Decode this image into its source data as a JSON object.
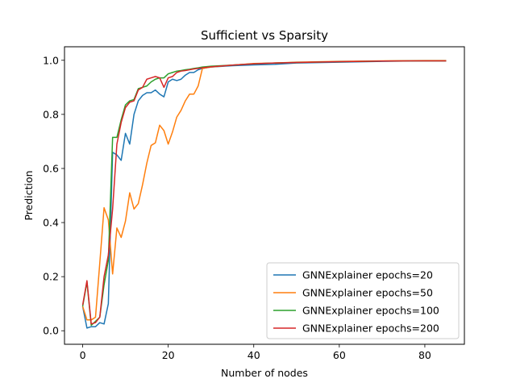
{
  "chart_data": {
    "type": "line",
    "title": "Sufficient vs Sparsity",
    "xlabel": "Number of nodes",
    "ylabel": "Prediction",
    "xlim": [
      -4.25,
      89.25
    ],
    "ylim": [
      -0.05,
      1.05
    ],
    "xticks": [
      0,
      20,
      40,
      60,
      80
    ],
    "yticks": [
      0.0,
      0.2,
      0.4,
      0.6,
      0.8,
      1.0
    ],
    "ytick_labels": [
      "0.0",
      "0.2",
      "0.4",
      "0.6",
      "0.8",
      "1.0"
    ],
    "xtick_labels": [
      "0",
      "20",
      "40",
      "60",
      "80"
    ],
    "grid": false,
    "legend_position": "lower right",
    "series": [
      {
        "name": "GNNExplainer epochs=20",
        "color": "#1f77b4",
        "x": [
          0,
          1,
          2,
          3,
          4,
          5,
          6,
          7,
          8,
          9,
          10,
          11,
          12,
          13,
          14,
          15,
          16,
          17,
          18,
          19,
          20,
          21,
          22,
          23,
          24,
          25,
          26,
          27,
          28,
          30,
          35,
          40,
          45,
          50,
          60,
          70,
          80,
          85
        ],
        "y": [
          0.09,
          0.01,
          0.015,
          0.015,
          0.03,
          0.025,
          0.1,
          0.66,
          0.65,
          0.63,
          0.73,
          0.69,
          0.8,
          0.85,
          0.87,
          0.88,
          0.88,
          0.89,
          0.875,
          0.865,
          0.92,
          0.93,
          0.925,
          0.93,
          0.945,
          0.955,
          0.955,
          0.965,
          0.97,
          0.975,
          0.98,
          0.983,
          0.985,
          0.99,
          0.993,
          0.996,
          0.998,
          0.998
        ]
      },
      {
        "name": "GNNExplainer epochs=50",
        "color": "#ff7f0e",
        "x": [
          0,
          1,
          2,
          3,
          4,
          5,
          6,
          7,
          8,
          9,
          10,
          11,
          12,
          13,
          14,
          15,
          16,
          17,
          18,
          19,
          20,
          21,
          22,
          23,
          24,
          25,
          26,
          27,
          28,
          30,
          35,
          40,
          45,
          50,
          60,
          70,
          80,
          85
        ],
        "y": [
          0.09,
          0.04,
          0.04,
          0.05,
          0.25,
          0.455,
          0.41,
          0.21,
          0.38,
          0.345,
          0.405,
          0.51,
          0.45,
          0.47,
          0.54,
          0.62,
          0.685,
          0.695,
          0.76,
          0.74,
          0.69,
          0.735,
          0.79,
          0.815,
          0.85,
          0.875,
          0.875,
          0.905,
          0.97,
          0.975,
          0.982,
          0.988,
          0.99,
          0.993,
          0.996,
          0.998,
          0.999,
          0.999
        ]
      },
      {
        "name": "GNNExplainer epochs=100",
        "color": "#2ca02c",
        "x": [
          0,
          1,
          2,
          3,
          4,
          5,
          6,
          7,
          8,
          9,
          10,
          11,
          12,
          13,
          14,
          15,
          16,
          17,
          18,
          19,
          20,
          21,
          22,
          23,
          24,
          25,
          26,
          27,
          28,
          30,
          35,
          40,
          45,
          50,
          60,
          70,
          80,
          85
        ],
        "y": [
          0.09,
          0.18,
          0.02,
          0.035,
          0.05,
          0.17,
          0.26,
          0.715,
          0.715,
          0.78,
          0.835,
          0.85,
          0.855,
          0.895,
          0.9,
          0.905,
          0.92,
          0.93,
          0.935,
          0.935,
          0.95,
          0.955,
          0.96,
          0.962,
          0.965,
          0.967,
          0.97,
          0.972,
          0.975,
          0.978,
          0.982,
          0.987,
          0.99,
          0.992,
          0.995,
          0.997,
          0.998,
          0.998
        ]
      },
      {
        "name": "GNNExplainer epochs=200",
        "color": "#d62728",
        "x": [
          0,
          1,
          2,
          3,
          4,
          5,
          6,
          7,
          8,
          9,
          10,
          11,
          12,
          13,
          14,
          15,
          16,
          17,
          18,
          19,
          20,
          21,
          22,
          23,
          24,
          25,
          26,
          27,
          28,
          30,
          35,
          40,
          45,
          50,
          60,
          70,
          80,
          85
        ],
        "y": [
          0.095,
          0.185,
          0.025,
          0.03,
          0.05,
          0.2,
          0.28,
          0.45,
          0.69,
          0.77,
          0.825,
          0.845,
          0.85,
          0.89,
          0.9,
          0.93,
          0.935,
          0.94,
          0.935,
          0.9,
          0.935,
          0.94,
          0.955,
          0.96,
          0.962,
          0.965,
          0.968,
          0.97,
          0.972,
          0.976,
          0.982,
          0.987,
          0.99,
          0.992,
          0.995,
          0.997,
          0.998,
          0.998
        ]
      }
    ]
  }
}
